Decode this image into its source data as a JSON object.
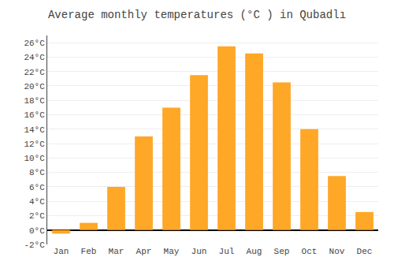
{
  "chart_data": {
    "type": "bar",
    "title": "Average monthly temperatures (°C ) in Qubadlı",
    "categories": [
      "Jan",
      "Feb",
      "Mar",
      "Apr",
      "May",
      "Jun",
      "Jul",
      "Aug",
      "Sep",
      "Oct",
      "Nov",
      "Dec"
    ],
    "values": [
      -0.5,
      1.0,
      6.0,
      13.0,
      17.0,
      21.5,
      25.5,
      24.5,
      20.5,
      14.0,
      7.5,
      2.5
    ],
    "color": "#FFA726",
    "ylim": [
      -2,
      27
    ],
    "yticks": [
      {
        "value": -2,
        "label": "-2°C"
      },
      {
        "value": 0,
        "label": "0°C"
      },
      {
        "value": 2,
        "label": "2°C"
      },
      {
        "value": 4,
        "label": "4°C"
      },
      {
        "value": 6,
        "label": "6°C"
      },
      {
        "value": 8,
        "label": "8°C"
      },
      {
        "value": 10,
        "label": "10°C"
      },
      {
        "value": 12,
        "label": "12°C"
      },
      {
        "value": 14,
        "label": "14°C"
      },
      {
        "value": 16,
        "label": "16°C"
      },
      {
        "value": 18,
        "label": "18°C"
      },
      {
        "value": 20,
        "label": "20°C"
      },
      {
        "value": 22,
        "label": "22°C"
      },
      {
        "value": 24,
        "label": "24°C"
      },
      {
        "value": 26,
        "label": "26°C"
      }
    ],
    "grid": true
  }
}
